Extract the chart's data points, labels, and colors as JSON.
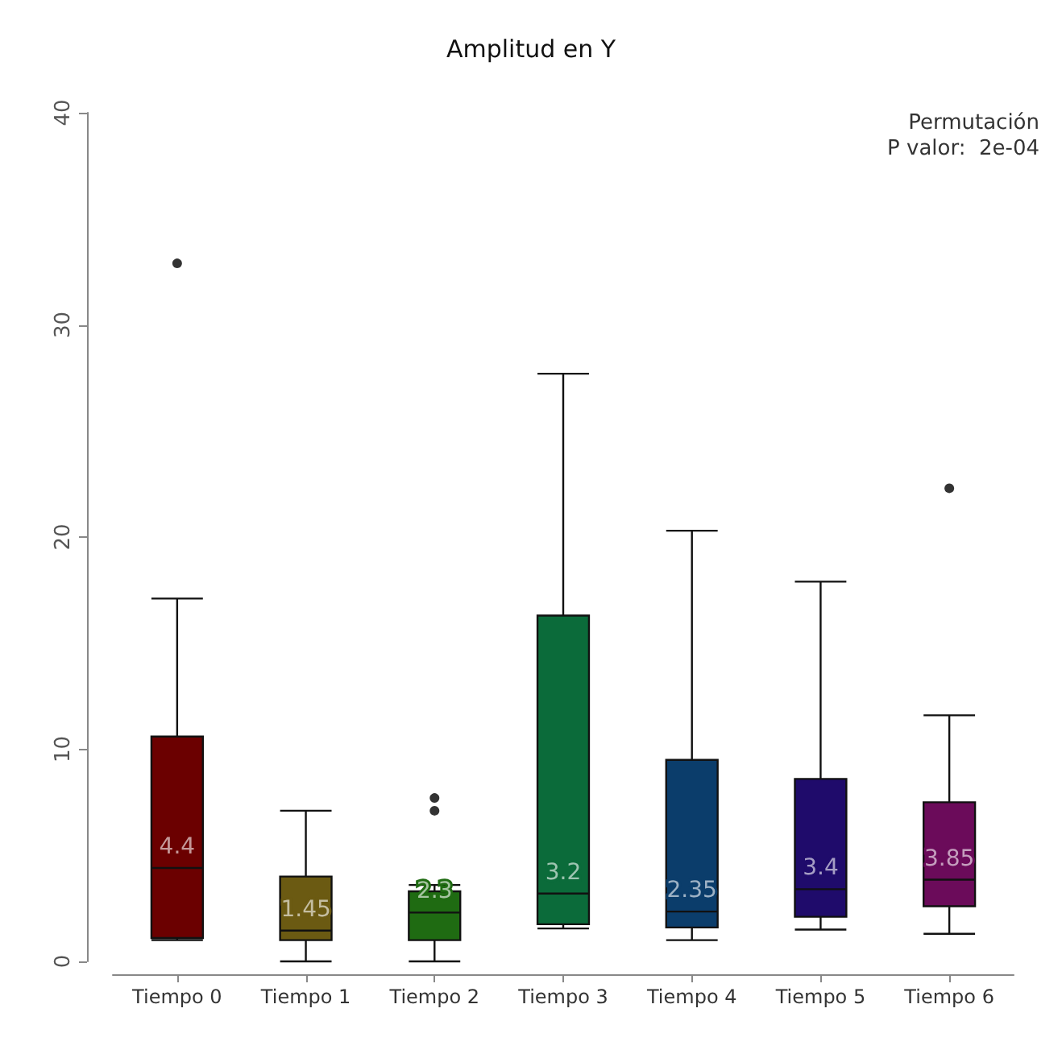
{
  "chart_data": {
    "type": "box",
    "title": "Amplitud en Y",
    "categories": [
      "Tiempo 0",
      "Tiempo 1",
      "Tiempo 2",
      "Tiempo 3",
      "Tiempo 4",
      "Tiempo 5",
      "Tiempo 6"
    ],
    "colors": [
      "#6b0000",
      "#6b5a12",
      "#1f6b12",
      "#0b6b3a",
      "#0b3d6b",
      "#1f0b6b",
      "#6b0b5a"
    ],
    "boxes": [
      {
        "low": 1.0,
        "q1": 1.1,
        "median": 4.4,
        "q3": 10.6,
        "high": 17.1,
        "outliers": [
          32.9
        ]
      },
      {
        "low": 0,
        "q1": 1.0,
        "median": 1.45,
        "q3": 4.0,
        "high": 7.1
      },
      {
        "low": 0,
        "q1": 1.0,
        "median": 2.3,
        "q3": 3.3,
        "high": 3.6,
        "outliers": [
          7.1,
          7.7
        ]
      },
      {
        "low": 1.55,
        "q1": 1.75,
        "median": 3.2,
        "q3": 16.3,
        "high": 27.7
      },
      {
        "low": 1.0,
        "q1": 1.6,
        "median": 2.35,
        "q3": 9.5,
        "high": 20.3
      },
      {
        "low": 1.5,
        "q1": 2.1,
        "median": 3.4,
        "q3": 8.6,
        "high": 17.9
      },
      {
        "low": 1.3,
        "q1": 2.6,
        "median": 3.85,
        "q3": 7.5,
        "high": 11.6,
        "outliers": [
          22.3
        ]
      }
    ],
    "ylim": [
      0,
      40
    ],
    "yticks": [
      0,
      10,
      20,
      30,
      40
    ],
    "annotations": [
      "Permutación",
      "P valor:  2e-04",
      {
        "text": "4.4",
        "x": "Tiempo 0",
        "y": 4.4
      },
      {
        "text": "1.45",
        "x": "Tiempo 1",
        "y": 1.45
      },
      {
        "text": "2.3",
        "x": "Tiempo 2",
        "y": 2.3
      },
      {
        "text": "3.2",
        "x": "Tiempo 3",
        "y": 3.2
      },
      {
        "text": "2.35",
        "x": "Tiempo 4",
        "y": 2.35
      },
      {
        "text": "3.4",
        "x": "Tiempo 5",
        "y": 3.4
      },
      {
        "text": "3.85",
        "x": "Tiempo 6",
        "y": 3.85
      }
    ],
    "grid": false
  }
}
